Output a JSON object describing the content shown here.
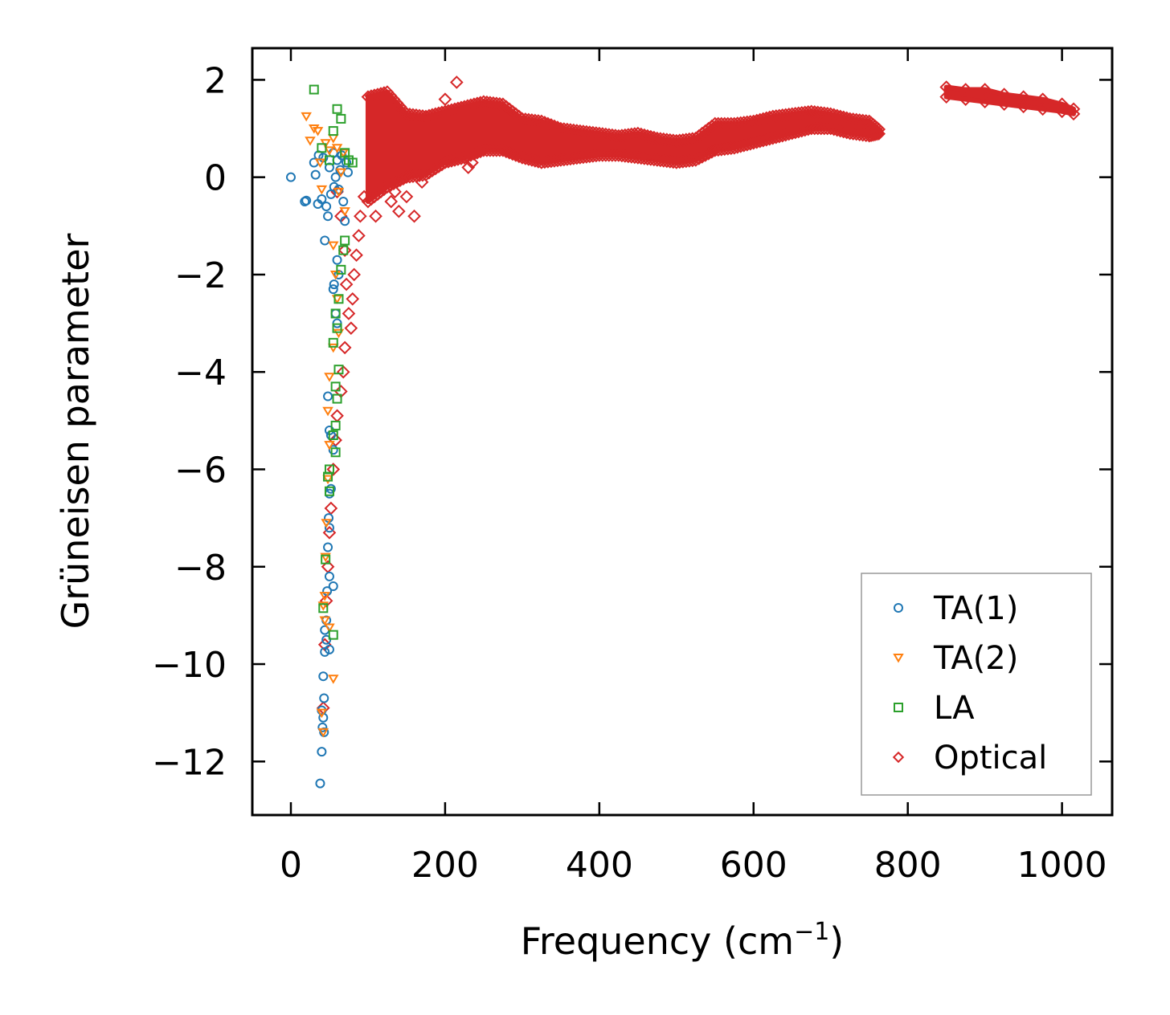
{
  "chart_data": {
    "type": "scatter",
    "title": "",
    "xlabel": "Frequency (cm",
    "xlabel_sup": "−1",
    "xlabel_end": ")",
    "ylabel": "Grüneisen parameter",
    "xlim": [
      -50,
      1065
    ],
    "ylim": [
      -13.1,
      2.65
    ],
    "xticks": [
      0,
      200,
      400,
      600,
      800,
      1000
    ],
    "xtick_labels": [
      "0",
      "200",
      "400",
      "600",
      "800",
      "1000"
    ],
    "yticks": [
      2,
      0,
      -2,
      -4,
      -6,
      -8,
      -10,
      -12
    ],
    "ytick_labels": [
      "2",
      "0",
      "−2",
      "−4",
      "−6",
      "−8",
      "−10",
      "−12"
    ],
    "legend_position": "lower-right",
    "series": [
      {
        "name": "TA(1)",
        "marker": "circle",
        "color": "#1f77b4",
        "points": [
          [
            0,
            0
          ],
          [
            18,
            -0.5
          ],
          [
            20,
            -0.48
          ],
          [
            30,
            0.3
          ],
          [
            32,
            0.05
          ],
          [
            35,
            -0.55
          ],
          [
            36,
            0.45
          ],
          [
            40,
            -0.45
          ],
          [
            42,
            0.4
          ],
          [
            44,
            -1.3
          ],
          [
            46,
            -0.6
          ],
          [
            48,
            -0.8
          ],
          [
            50,
            0.2
          ],
          [
            52,
            -0.35
          ],
          [
            55,
            0.5
          ],
          [
            56,
            -0.2
          ],
          [
            58,
            0.0
          ],
          [
            60,
            0.35
          ],
          [
            62,
            -0.25
          ],
          [
            64,
            0.15
          ],
          [
            66,
            0.45
          ],
          [
            68,
            -0.5
          ],
          [
            70,
            -0.9
          ],
          [
            72,
            0.3
          ],
          [
            74,
            0.1
          ],
          [
            60,
            -1.7
          ],
          [
            56,
            -2.2
          ],
          [
            55,
            -2.3
          ],
          [
            62,
            -2.0
          ],
          [
            58,
            -2.8
          ],
          [
            60,
            -3.0
          ],
          [
            48,
            -4.5
          ],
          [
            52,
            -5.3
          ],
          [
            50,
            -5.2
          ],
          [
            55,
            -5.6
          ],
          [
            52,
            -6.4
          ],
          [
            50,
            -6.5
          ],
          [
            49,
            -7.0
          ],
          [
            50,
            -7.2
          ],
          [
            48,
            -7.6
          ],
          [
            50,
            -8.2
          ],
          [
            47,
            -8.5
          ],
          [
            55,
            -8.4
          ],
          [
            46,
            -9.1
          ],
          [
            44,
            -9.3
          ],
          [
            46,
            -9.5
          ],
          [
            50,
            -9.7
          ],
          [
            44,
            -9.75
          ],
          [
            42,
            -10.25
          ],
          [
            43,
            -10.7
          ],
          [
            40,
            -10.95
          ],
          [
            42,
            -11.1
          ],
          [
            41,
            -11.3
          ],
          [
            43,
            -11.4
          ],
          [
            40,
            -11.8
          ],
          [
            38,
            -12.45
          ]
        ]
      },
      {
        "name": "TA(2)",
        "marker": "triangle-down",
        "color": "#ff7f0e",
        "points": [
          [
            20,
            1.25
          ],
          [
            25,
            0.75
          ],
          [
            30,
            1.0
          ],
          [
            35,
            0.95
          ],
          [
            38,
            0.3
          ],
          [
            40,
            -0.25
          ],
          [
            45,
            0.7
          ],
          [
            50,
            0.55
          ],
          [
            55,
            0.8
          ],
          [
            60,
            0.6
          ],
          [
            62,
            -0.3
          ],
          [
            65,
            0.1
          ],
          [
            68,
            0.5
          ],
          [
            70,
            -0.7
          ],
          [
            55,
            -1.4
          ],
          [
            58,
            -2.0
          ],
          [
            60,
            -2.5
          ],
          [
            62,
            -3.2
          ],
          [
            55,
            -3.5
          ],
          [
            50,
            -4.1
          ],
          [
            48,
            -4.8
          ],
          [
            50,
            -5.5
          ],
          [
            48,
            -6.2
          ],
          [
            46,
            -7.1
          ],
          [
            45,
            -7.8
          ],
          [
            44,
            -8.6
          ],
          [
            42,
            -8.8
          ],
          [
            44,
            -9.1
          ],
          [
            50,
            -9.25
          ],
          [
            55,
            -10.3
          ],
          [
            40,
            -11.0
          ],
          [
            42,
            -11.4
          ]
        ]
      },
      {
        "name": "LA",
        "marker": "square",
        "color": "#2ca02c",
        "points": [
          [
            30,
            1.8
          ],
          [
            60,
            1.4
          ],
          [
            65,
            1.2
          ],
          [
            55,
            0.95
          ],
          [
            40,
            0.6
          ],
          [
            50,
            0.35
          ],
          [
            70,
            0.5
          ],
          [
            75,
            0.35
          ],
          [
            80,
            0.3
          ],
          [
            70,
            -1.3
          ],
          [
            68,
            -1.5
          ],
          [
            65,
            -1.9
          ],
          [
            62,
            -2.5
          ],
          [
            58,
            -2.8
          ],
          [
            60,
            -3.1
          ],
          [
            55,
            -3.4
          ],
          [
            62,
            -3.95
          ],
          [
            58,
            -4.3
          ],
          [
            60,
            -4.55
          ],
          [
            58,
            -5.1
          ],
          [
            55,
            -5.3
          ],
          [
            58,
            -5.65
          ],
          [
            50,
            -6.0
          ],
          [
            48,
            -6.15
          ],
          [
            50,
            -6.45
          ],
          [
            45,
            -7.85
          ],
          [
            42,
            -8.85
          ],
          [
            55,
            -9.4
          ]
        ]
      },
      {
        "name": "Optical",
        "marker": "diamond",
        "color": "#d62728",
        "dense_band": true,
        "low_freq_points": [
          [
            60,
            -0.3
          ],
          [
            65,
            -0.8
          ],
          [
            70,
            -1.5
          ],
          [
            72,
            -2.2
          ],
          [
            75,
            -2.8
          ],
          [
            78,
            -3.1
          ],
          [
            80,
            -2.5
          ],
          [
            82,
            -2.0
          ],
          [
            85,
            -1.6
          ],
          [
            88,
            -1.2
          ],
          [
            90,
            -0.8
          ],
          [
            95,
            -0.4
          ],
          [
            70,
            -3.5
          ],
          [
            68,
            -4.0
          ],
          [
            65,
            -4.4
          ],
          [
            60,
            -4.9
          ],
          [
            58,
            -5.4
          ],
          [
            55,
            -6.0
          ],
          [
            52,
            -6.8
          ],
          [
            50,
            -7.3
          ],
          [
            48,
            -8.0
          ],
          [
            46,
            -8.7
          ],
          [
            44,
            -9.6
          ],
          [
            42,
            -10.9
          ],
          [
            130,
            -0.5
          ],
          [
            140,
            -0.7
          ],
          [
            150,
            -0.4
          ],
          [
            160,
            -0.8
          ],
          [
            135,
            -0.3
          ],
          [
            170,
            -0.1
          ],
          [
            120,
            -0.2
          ],
          [
            110,
            -0.8
          ],
          [
            215,
            1.95
          ],
          [
            200,
            1.6
          ],
          [
            230,
            0.2
          ],
          [
            235,
            0.3
          ]
        ],
        "envelope_x": [
          100,
          125,
          150,
          175,
          200,
          225,
          250,
          275,
          300,
          325,
          350,
          375,
          400,
          425,
          450,
          475,
          500,
          525,
          550,
          575,
          600,
          625,
          650,
          675,
          700,
          725,
          750,
          765
        ],
        "envelope_upper": [
          1.65,
          1.75,
          1.3,
          1.25,
          1.35,
          1.45,
          1.55,
          1.5,
          1.2,
          1.15,
          1.0,
          0.95,
          0.9,
          0.85,
          0.9,
          0.8,
          0.75,
          0.8,
          1.1,
          1.1,
          1.15,
          1.25,
          1.3,
          1.35,
          1.3,
          1.2,
          1.15,
          0.95
        ],
        "envelope_lower": [
          -0.5,
          -0.2,
          0.0,
          0.05,
          0.3,
          0.4,
          0.55,
          0.55,
          0.4,
          0.3,
          0.35,
          0.4,
          0.45,
          0.45,
          0.4,
          0.35,
          0.3,
          0.35,
          0.55,
          0.6,
          0.7,
          0.8,
          0.9,
          1.0,
          1.0,
          0.9,
          0.85,
          0.9
        ],
        "upper_band_x": [
          850,
          875,
          900,
          925,
          950,
          975,
          1000,
          1015
        ],
        "upper_band_top": [
          1.85,
          1.8,
          1.8,
          1.7,
          1.65,
          1.6,
          1.5,
          1.4
        ],
        "upper_band_bottom": [
          1.65,
          1.6,
          1.55,
          1.5,
          1.45,
          1.4,
          1.35,
          1.3
        ]
      }
    ]
  }
}
